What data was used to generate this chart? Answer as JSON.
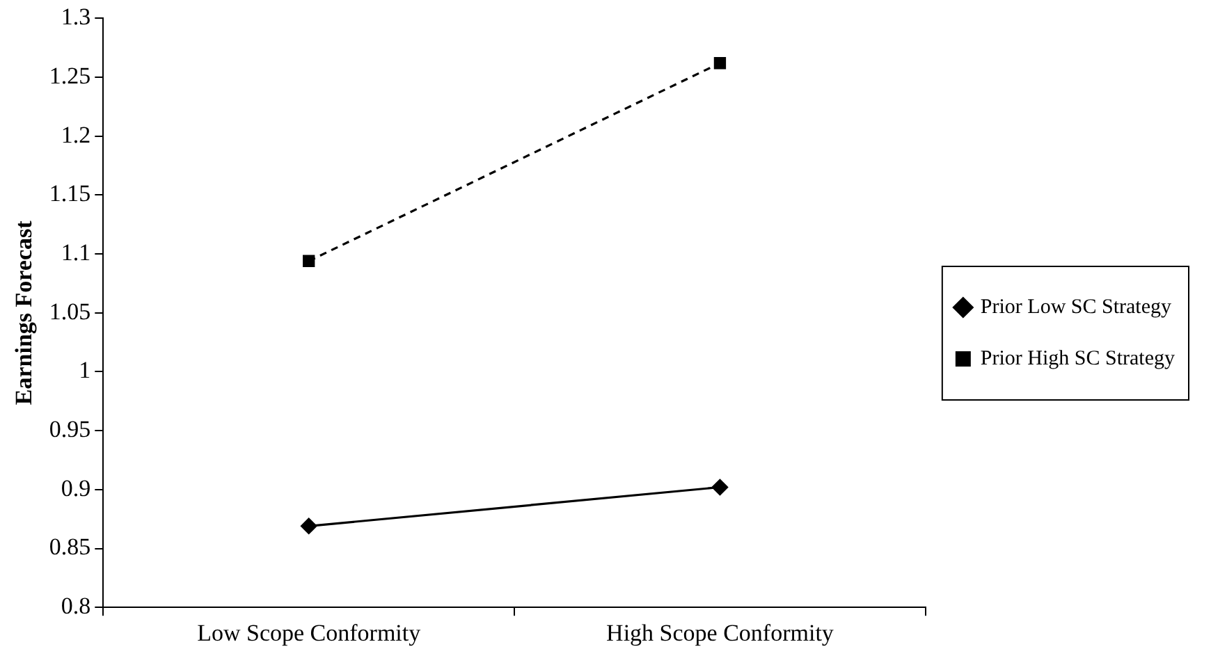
{
  "chart_data": {
    "type": "line",
    "ylabel": "Earnings Forecast",
    "categories": [
      "Low Scope Conformity",
      "High Scope Conformity"
    ],
    "ylim": [
      0.8,
      1.3
    ],
    "yticks": [
      0.8,
      0.85,
      0.9,
      0.95,
      1,
      1.05,
      1.1,
      1.15,
      1.2,
      1.25,
      1.3
    ],
    "grid": false,
    "legend": "right",
    "series": [
      {
        "name": "Prior Low SC Strategy",
        "color": "#000000",
        "values": [
          0.869,
          0.902
        ],
        "marker": "diamond",
        "line_style": "solid"
      },
      {
        "name": "Prior High SC Strategy",
        "color": "#000000",
        "values": [
          1.094,
          1.262
        ],
        "marker": "square",
        "line_style": "dashed"
      }
    ]
  }
}
